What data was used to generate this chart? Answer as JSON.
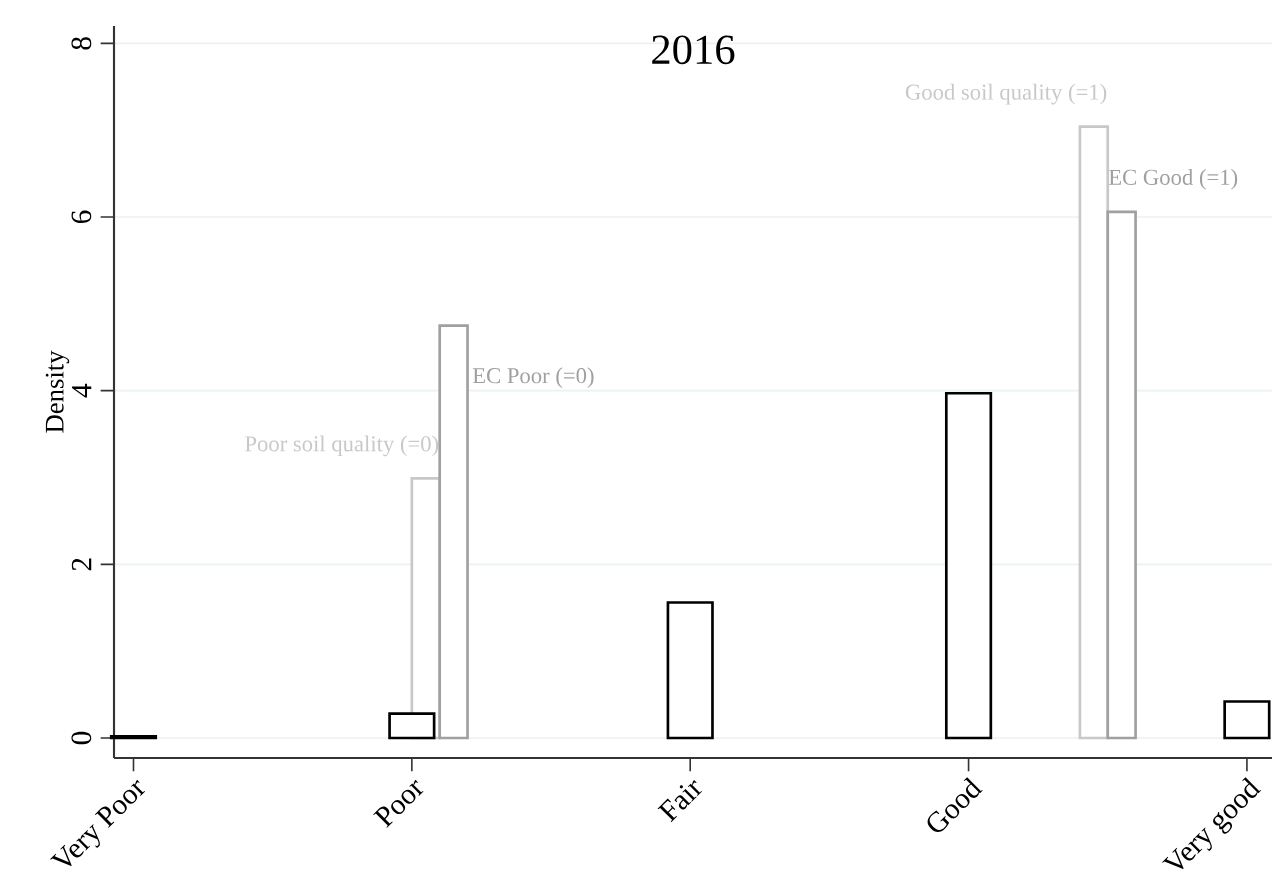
{
  "chart_data": {
    "type": "bar",
    "title": "2016",
    "ylabel": "Density",
    "categories": [
      "Very Poor",
      null,
      "Poor",
      null,
      "Fair",
      null,
      "Good",
      null,
      "Very good"
    ],
    "ylim": [
      -0.23,
      8.2
    ],
    "yticks": [
      0,
      2,
      4,
      6,
      8
    ],
    "grid": "y",
    "series": [
      {
        "color": "#000000",
        "values": [
          0.02,
          null,
          0.28,
          null,
          1.56,
          null,
          3.97,
          null,
          0.42
        ]
      },
      {
        "name": "Poor soil quality (=0)",
        "color": "#c8c8c8",
        "values": [
          null,
          null,
          2.99,
          null,
          null,
          null,
          null,
          null,
          null
        ]
      },
      {
        "name": "EC Poor (=0)",
        "color": "#a0a0a0",
        "values": [
          null,
          null,
          4.75,
          null,
          null,
          null,
          null,
          null,
          null
        ]
      },
      {
        "name": "Good soil quality (=1)",
        "color": "#c8c8c8",
        "values": [
          null,
          null,
          null,
          null,
          null,
          null,
          null,
          7.04,
          null
        ]
      },
      {
        "name": "EC Good (=1)",
        "color": "#a0a0a0",
        "values": [
          null,
          null,
          null,
          null,
          null,
          null,
          null,
          6.06,
          null
        ]
      }
    ]
  }
}
